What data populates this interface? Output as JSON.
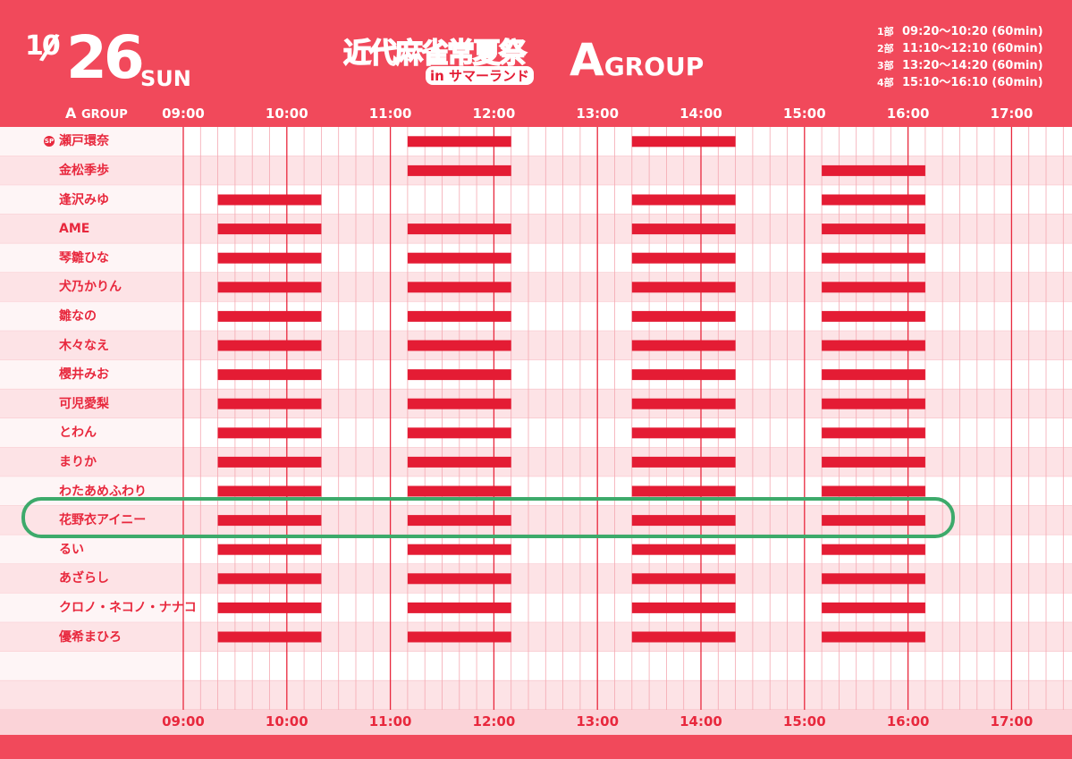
{
  "header": {
    "month": "10",
    "day": "26",
    "weekday": "SUN",
    "event_title": "近代麻雀常夏祭",
    "event_subtitle": "in サマーランド",
    "group_letter": "A",
    "group_word": "GROUP"
  },
  "sessions": [
    {
      "label": "1部",
      "time": "09:20〜10:20 (60min)"
    },
    {
      "label": "2部",
      "time": "11:10〜12:10 (60min)"
    },
    {
      "label": "3部",
      "time": "13:20〜14:20 (60min)"
    },
    {
      "label": "4部",
      "time": "15:10〜16:10 (60min)"
    }
  ],
  "timeline": {
    "group_label_letter": "A",
    "group_label_word": "GROUP",
    "hour_labels": [
      "09:00",
      "10:00",
      "11:00",
      "12:00",
      "13:00",
      "14:00",
      "15:00",
      "16:00",
      "17:00"
    ],
    "start_hour": 9,
    "end_hour": 17
  },
  "sp_badge": "SP",
  "players": [
    {
      "name": "瀬戸環奈",
      "sp": true,
      "sessions": [
        2,
        3
      ]
    },
    {
      "name": "金松季歩",
      "sp": false,
      "sessions": [
        2,
        4
      ]
    },
    {
      "name": "逢沢みゆ",
      "sp": false,
      "sessions": [
        1,
        3,
        4
      ]
    },
    {
      "name": "AME",
      "sp": false,
      "sessions": [
        1,
        2,
        3,
        4
      ]
    },
    {
      "name": "琴雛ひな",
      "sp": false,
      "sessions": [
        1,
        2,
        3,
        4
      ]
    },
    {
      "name": "犬乃かりん",
      "sp": false,
      "sessions": [
        1,
        2,
        3,
        4
      ]
    },
    {
      "name": "雛なの",
      "sp": false,
      "sessions": [
        1,
        2,
        3,
        4
      ]
    },
    {
      "name": "木々なえ",
      "sp": false,
      "sessions": [
        1,
        2,
        3,
        4
      ]
    },
    {
      "name": "櫻井みお",
      "sp": false,
      "sessions": [
        1,
        2,
        3,
        4
      ]
    },
    {
      "name": "可児愛梨",
      "sp": false,
      "sessions": [
        1,
        2,
        3,
        4
      ]
    },
    {
      "name": "とわん",
      "sp": false,
      "sessions": [
        1,
        2,
        3,
        4
      ]
    },
    {
      "name": "まりか",
      "sp": false,
      "sessions": [
        1,
        2,
        3,
        4
      ]
    },
    {
      "name": "わたあめふわり",
      "sp": false,
      "sessions": [
        1,
        2,
        3,
        4
      ]
    },
    {
      "name": "花野衣アイニー",
      "sp": false,
      "sessions": [
        1,
        2,
        3,
        4
      ],
      "highlighted": true
    },
    {
      "name": "るい",
      "sp": false,
      "sessions": [
        1,
        2,
        3,
        4
      ]
    },
    {
      "name": "あざらし",
      "sp": false,
      "sessions": [
        1,
        2,
        3,
        4
      ]
    },
    {
      "name": "クロノ・ネコノ・ナナコ",
      "sp": false,
      "sessions": [
        1,
        2,
        3,
        4
      ]
    },
    {
      "name": "優希まひろ",
      "sp": false,
      "sessions": [
        1,
        2,
        3,
        4
      ]
    }
  ],
  "colors": {
    "primary": "#f1495b",
    "bar": "#e41c34",
    "stripe": "#fde3e6",
    "highlight": "#3daa6b"
  }
}
